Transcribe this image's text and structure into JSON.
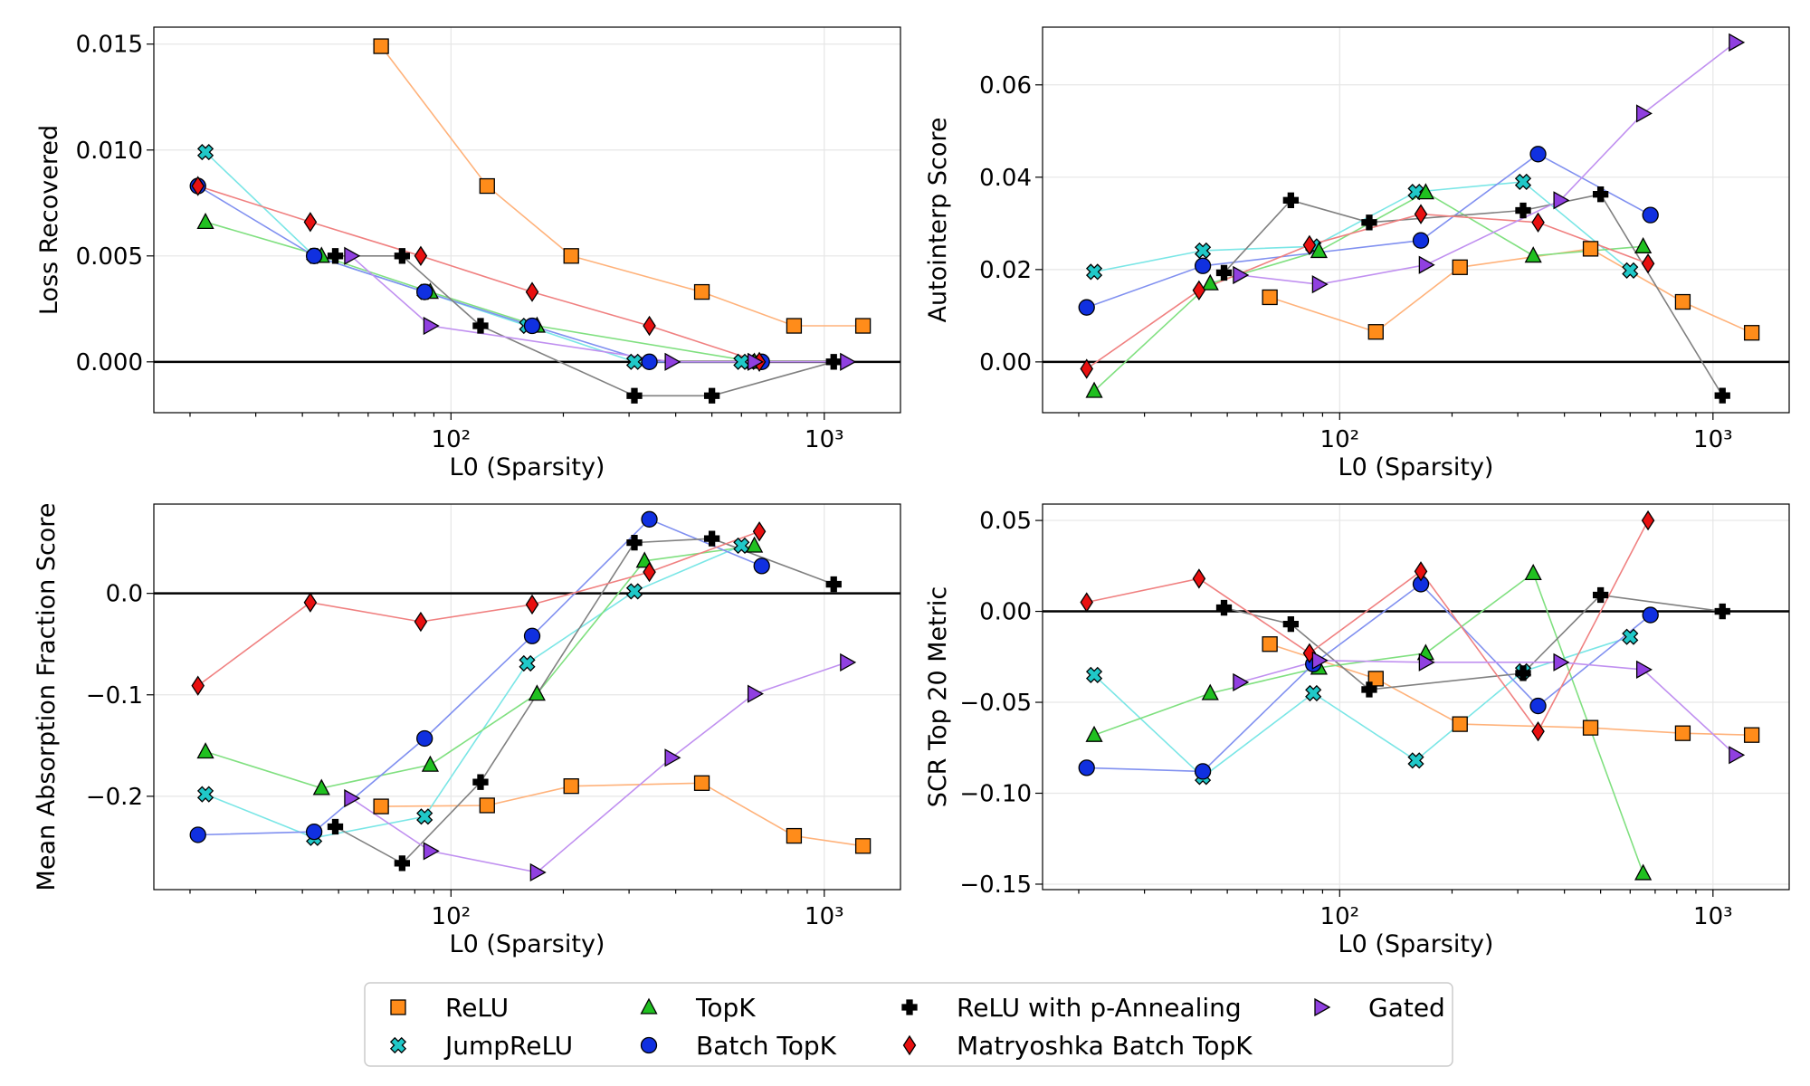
{
  "colors": {
    "ReLU": "#ff8c1a",
    "JumpReLU": "#20c8c8",
    "TopK": "#20c020",
    "Batch TopK": "#1030e0",
    "ReLU with p-Annealing": "#000000",
    "Matryoshka Batch TopK": "#e81010",
    "Gated": "#9040e0"
  },
  "line_colors": {
    "ReLU": "#ffb27a",
    "JumpReLU": "#7ae6e6",
    "TopK": "#80e080",
    "Batch TopK": "#8090f0",
    "ReLU with p-Annealing": "#808080",
    "Matryoshka Batch TopK": "#f08080",
    "Gated": "#c090f0"
  },
  "markers": {
    "ReLU": "square",
    "JumpReLU": "xcross",
    "TopK": "triangle",
    "Batch TopK": "circle",
    "ReLU with p-Annealing": "plus",
    "Matryoshka Batch TopK": "diamond",
    "Gated": "triangle-right"
  },
  "legend": {
    "entries": [
      "ReLU",
      "JumpReLU",
      "TopK",
      "Batch TopK",
      "ReLU with p-Annealing",
      "Matryoshka Batch TopK",
      "Gated"
    ]
  },
  "chart_data": [
    {
      "type": "line",
      "xscale": "log",
      "xlabel": "L0 (Sparsity)",
      "ylabel": "Loss Recovered",
      "xlim": [
        16,
        1600
      ],
      "ylim": [
        -0.0024,
        0.0158
      ],
      "yticks": [
        0.0,
        0.005,
        0.01,
        0.015
      ],
      "ytick_labels": [
        "0.000",
        "0.005",
        "0.010",
        "0.015"
      ],
      "xtick_labels": [
        "10²",
        "10³"
      ],
      "grid": true,
      "zero_line": true,
      "series": [
        {
          "name": "ReLU",
          "x": [
            65,
            125,
            210,
            470,
            830,
            1270
          ],
          "y": [
            0.0149,
            0.0083,
            0.005,
            0.0033,
            0.0017,
            0.0017
          ]
        },
        {
          "name": "JumpReLU",
          "x": [
            22,
            43,
            85,
            160,
            310,
            600,
            660
          ],
          "y": [
            0.0099,
            0.005,
            0.0033,
            0.0017,
            0.0,
            0.0,
            0.0
          ]
        },
        {
          "name": "TopK",
          "x": [
            22,
            45,
            88,
            170,
            650
          ],
          "y": [
            0.0066,
            0.005,
            0.0033,
            0.0017,
            0.0
          ]
        },
        {
          "name": "Batch TopK",
          "x": [
            21,
            43,
            85,
            165,
            340,
            680
          ],
          "y": [
            0.0083,
            0.005,
            0.0033,
            0.0017,
            0.0,
            0.0
          ]
        },
        {
          "name": "ReLU with p-Annealing",
          "x": [
            49,
            74,
            120,
            310,
            500,
            1060
          ],
          "y": [
            0.005,
            0.005,
            0.0017,
            -0.0016,
            -0.0016,
            0.0
          ]
        },
        {
          "name": "Matryoshka Batch TopK",
          "x": [
            21,
            42,
            83,
            165,
            340,
            670
          ],
          "y": [
            0.0083,
            0.0066,
            0.005,
            0.0033,
            0.0017,
            0.0
          ]
        },
        {
          "name": "Gated",
          "x": [
            54,
            88,
            390,
            650,
            1150
          ],
          "y": [
            0.005,
            0.0017,
            0.0,
            0.0,
            0.0
          ]
        }
      ]
    },
    {
      "type": "line",
      "xscale": "log",
      "xlabel": "L0 (Sparsity)",
      "ylabel": "Autointerp Score",
      "xlim": [
        16,
        1600
      ],
      "ylim": [
        -0.011,
        0.0725
      ],
      "yticks": [
        0.0,
        0.02,
        0.04,
        0.06
      ],
      "ytick_labels": [
        "0.00",
        "0.02",
        "0.04",
        "0.06"
      ],
      "xtick_labels": [
        "10²",
        "10³"
      ],
      "grid": true,
      "zero_line": true,
      "series": [
        {
          "name": "ReLU",
          "x": [
            65,
            125,
            210,
            470,
            830,
            1270
          ],
          "y": [
            0.014,
            0.0065,
            0.0205,
            0.0245,
            0.013,
            0.0063
          ]
        },
        {
          "name": "JumpReLU",
          "x": [
            22,
            43,
            85,
            160,
            310,
            600
          ],
          "y": [
            0.0195,
            0.0241,
            0.025,
            0.0368,
            0.039,
            0.0198
          ]
        },
        {
          "name": "TopK",
          "x": [
            22,
            45,
            88,
            170,
            330,
            650
          ],
          "y": [
            -0.0063,
            0.017,
            0.024,
            0.0367,
            0.023,
            0.025
          ]
        },
        {
          "name": "Batch TopK",
          "x": [
            21,
            43,
            165,
            340,
            680
          ],
          "y": [
            0.0118,
            0.0208,
            0.0263,
            0.045,
            0.0318
          ]
        },
        {
          "name": "ReLU with p-Annealing",
          "x": [
            49,
            74,
            120,
            310,
            500,
            1060
          ],
          "y": [
            0.0193,
            0.035,
            0.0302,
            0.0328,
            0.0363,
            -0.0073
          ]
        },
        {
          "name": "Matryoshka Batch TopK",
          "x": [
            21,
            42,
            83,
            165,
            340,
            670
          ],
          "y": [
            -0.0015,
            0.0155,
            0.0253,
            0.032,
            0.0302,
            0.0213
          ]
        },
        {
          "name": "Gated",
          "x": [
            54,
            88,
            170,
            390,
            650,
            1150
          ],
          "y": [
            0.0188,
            0.0168,
            0.021,
            0.035,
            0.0538,
            0.0692
          ]
        }
      ]
    },
    {
      "type": "line",
      "xscale": "log",
      "xlabel": "L0 (Sparsity)",
      "ylabel": "Mean Absorption Fraction Score",
      "xlim": [
        16,
        1600
      ],
      "ylim": [
        -0.292,
        0.088
      ],
      "yticks": [
        -0.2,
        -0.1,
        0.0
      ],
      "ytick_labels": [
        "−0.2",
        "−0.1",
        "0.0"
      ],
      "xtick_labels": [
        "10²",
        "10³"
      ],
      "grid": true,
      "zero_line": true,
      "series": [
        {
          "name": "ReLU",
          "x": [
            65,
            125,
            210,
            470,
            830,
            1270
          ],
          "y": [
            -0.21,
            -0.209,
            -0.19,
            -0.187,
            -0.239,
            -0.249
          ]
        },
        {
          "name": "JumpReLU",
          "x": [
            22,
            43,
            85,
            160,
            310,
            600
          ],
          "y": [
            -0.198,
            -0.241,
            -0.22,
            -0.069,
            0.002,
            0.047
          ]
        },
        {
          "name": "TopK",
          "x": [
            22,
            45,
            88,
            170,
            330,
            650
          ],
          "y": [
            -0.156,
            -0.192,
            -0.169,
            -0.099,
            0.032,
            0.047
          ]
        },
        {
          "name": "Batch TopK",
          "x": [
            21,
            43,
            85,
            165,
            340,
            680
          ],
          "y": [
            -0.238,
            -0.235,
            -0.143,
            -0.042,
            0.073,
            0.027
          ]
        },
        {
          "name": "ReLU with p-Annealing",
          "x": [
            49,
            74,
            120,
            310,
            500,
            1060
          ],
          "y": [
            -0.23,
            -0.266,
            -0.186,
            0.05,
            0.054,
            0.009
          ]
        },
        {
          "name": "Matryoshka Batch TopK",
          "x": [
            21,
            42,
            83,
            165,
            340,
            670
          ],
          "y": [
            -0.091,
            -0.009,
            -0.028,
            -0.011,
            0.021,
            0.061
          ]
        },
        {
          "name": "Gated",
          "x": [
            54,
            88,
            170,
            390,
            650,
            1150
          ],
          "y": [
            -0.202,
            -0.254,
            -0.275,
            -0.162,
            -0.099,
            -0.068
          ]
        }
      ]
    },
    {
      "type": "line",
      "xscale": "log",
      "xlabel": "L0 (Sparsity)",
      "ylabel": "SCR Top 20 Metric",
      "xlim": [
        16,
        1600
      ],
      "ylim": [
        -0.153,
        0.059
      ],
      "yticks": [
        -0.15,
        -0.1,
        -0.05,
        0.0,
        0.05
      ],
      "ytick_labels": [
        "−0.15",
        "−0.10",
        "−0.05",
        "0.00",
        "0.05"
      ],
      "xtick_labels": [
        "10²",
        "10³"
      ],
      "grid": true,
      "zero_line": true,
      "series": [
        {
          "name": "ReLU",
          "x": [
            65,
            125,
            210,
            470,
            830,
            1270
          ],
          "y": [
            -0.018,
            -0.037,
            -0.062,
            -0.064,
            -0.067,
            -0.068
          ]
        },
        {
          "name": "JumpReLU",
          "x": [
            22,
            43,
            85,
            160,
            310,
            600
          ],
          "y": [
            -0.035,
            -0.091,
            -0.045,
            -0.082,
            -0.033,
            -0.014
          ]
        },
        {
          "name": "TopK",
          "x": [
            22,
            45,
            88,
            170,
            330,
            650
          ],
          "y": [
            -0.068,
            -0.045,
            -0.031,
            -0.023,
            0.021,
            -0.144
          ]
        },
        {
          "name": "Batch TopK",
          "x": [
            21,
            43,
            85,
            165,
            340,
            680
          ],
          "y": [
            -0.086,
            -0.088,
            -0.029,
            0.015,
            -0.052,
            -0.002
          ]
        },
        {
          "name": "ReLU with p-Annealing",
          "x": [
            49,
            74,
            120,
            310,
            500,
            1060
          ],
          "y": [
            0.002,
            -0.007,
            -0.043,
            -0.034,
            0.009,
            0.0
          ]
        },
        {
          "name": "Matryoshka Batch TopK",
          "x": [
            21,
            42,
            83,
            165,
            340,
            670
          ],
          "y": [
            0.005,
            0.018,
            -0.023,
            0.022,
            -0.066,
            0.05
          ]
        },
        {
          "name": "Gated",
          "x": [
            54,
            88,
            170,
            390,
            650,
            1150
          ],
          "y": [
            -0.039,
            -0.027,
            -0.028,
            -0.028,
            -0.032,
            -0.079
          ]
        }
      ]
    }
  ]
}
